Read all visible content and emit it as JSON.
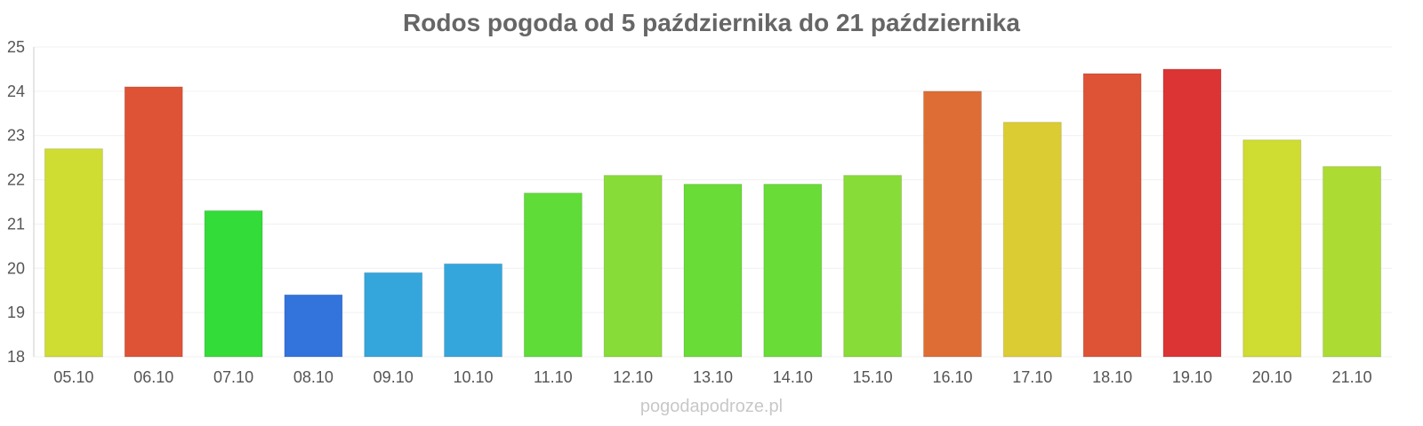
{
  "chart_data": {
    "type": "bar",
    "title": "Rodos pogoda od 5 października do 21 października",
    "categories": [
      "05.10",
      "06.10",
      "07.10",
      "08.10",
      "09.10",
      "10.10",
      "11.10",
      "12.10",
      "13.10",
      "14.10",
      "15.10",
      "16.10",
      "17.10",
      "18.10",
      "19.10",
      "20.10",
      "21.10"
    ],
    "values": [
      22.7,
      24.1,
      21.3,
      19.4,
      19.9,
      20.1,
      21.7,
      22.1,
      21.9,
      21.9,
      22.1,
      24.0,
      23.3,
      24.4,
      24.5,
      22.9,
      22.3
    ],
    "colors": [
      "#cfdc32",
      "#de5235",
      "#33dc38",
      "#3373dc",
      "#35a6dc",
      "#35a6dc",
      "#5fdc37",
      "#88dc37",
      "#6adc37",
      "#69dc37",
      "#88dc37",
      "#de6d35",
      "#dccc33",
      "#de5235",
      "#dc3434",
      "#cfdc32",
      "#acdc33"
    ],
    "ylim": [
      18,
      25
    ],
    "yticks": [
      18,
      19,
      20,
      21,
      22,
      23,
      24,
      25
    ],
    "grid": true,
    "legend": "none"
  },
  "footer": {
    "watermark": "pogodapodroze.pl"
  }
}
